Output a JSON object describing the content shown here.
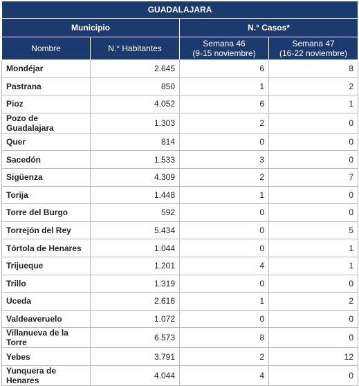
{
  "table": {
    "title": "GUADALAJARA",
    "groups": [
      "Municipio",
      "N.° Casos*"
    ],
    "columns": [
      {
        "label": "Nombre"
      },
      {
        "label": "N.° Habitantes"
      },
      {
        "label": "Semana 46",
        "sub": "(9-15 noviembre)"
      },
      {
        "label": "Semana 47",
        "sub": "(16-22 noviembre)"
      }
    ],
    "rows": [
      [
        "Mondéjar",
        "2.645",
        "6",
        "8"
      ],
      [
        "Pastrana",
        "850",
        "1",
        "2"
      ],
      [
        "Pioz",
        "4.052",
        "6",
        "1"
      ],
      [
        "Pozo de Guadalajara",
        "1.303",
        "2",
        "0"
      ],
      [
        "Quer",
        "814",
        "0",
        "0"
      ],
      [
        "Sacedón",
        "1.533",
        "3",
        "0"
      ],
      [
        "Sigüenza",
        "4.309",
        "2",
        "7"
      ],
      [
        "Torija",
        "1.448",
        "1",
        "0"
      ],
      [
        "Torre del Burgo",
        "592",
        "0",
        "0"
      ],
      [
        "Torrejón del Rey",
        "5.434",
        "0",
        "5"
      ],
      [
        "Tórtola de Henares",
        "1.044",
        "0",
        "1"
      ],
      [
        "Trijueque",
        "1.201",
        "4",
        "1"
      ],
      [
        "Trillo",
        "1.319",
        "0",
        "0"
      ],
      [
        "Uceda",
        "2.616",
        "1",
        "2"
      ],
      [
        "Valdeaveruelo",
        "1.072",
        "0",
        "0"
      ],
      [
        "Villanueva de la Torre",
        "6.573",
        "8",
        "0"
      ],
      [
        "Yebes",
        "3.791",
        "2",
        "12"
      ],
      [
        "Yunquera de Henares",
        "4.044",
        "4",
        "0"
      ]
    ]
  }
}
